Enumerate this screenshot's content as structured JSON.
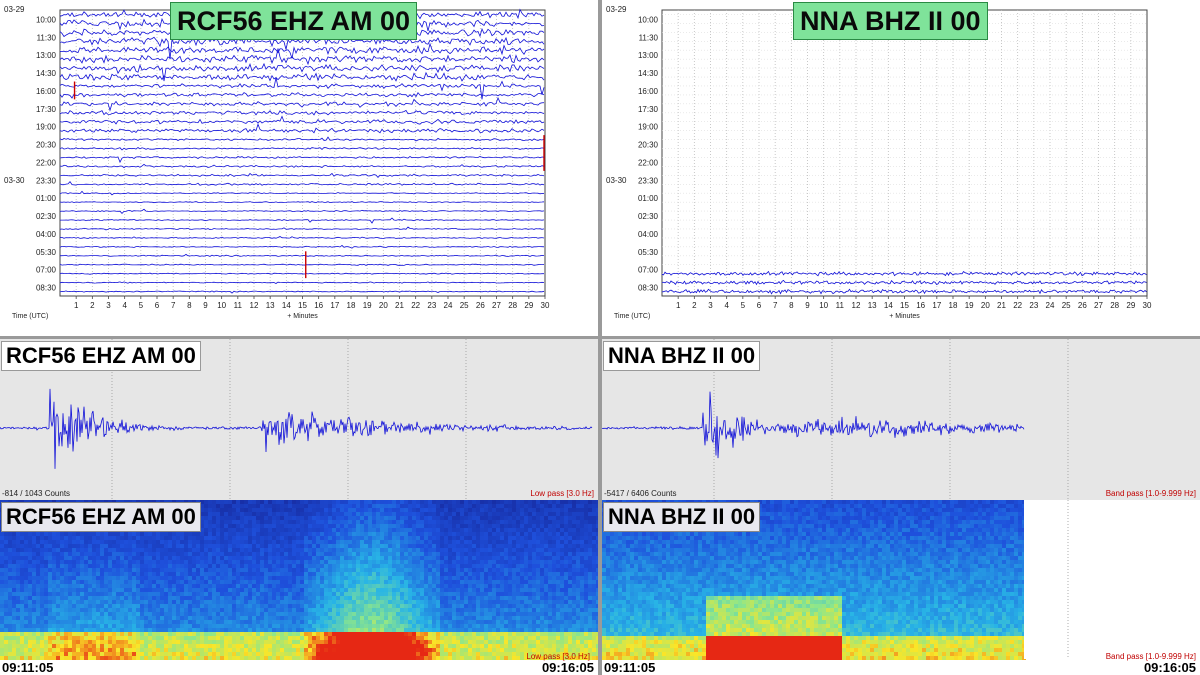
{
  "helicorder_left": {
    "title": "RCF56 EHZ AM 00",
    "date_labels": [
      "03-29",
      "03-30"
    ],
    "time_labels": [
      "10:00",
      "11:30",
      "13:00",
      "14:30",
      "16:00",
      "17:30",
      "19:00",
      "20:30",
      "22:00",
      "23:30",
      "01:00",
      "02:30",
      "04:00",
      "05:30",
      "07:00",
      "08:30"
    ],
    "x_ticks": [
      "1",
      "2",
      "3",
      "4",
      "5",
      "6",
      "7",
      "8",
      "9",
      "10",
      "11",
      "12",
      "13",
      "14",
      "15",
      "16",
      "17",
      "18",
      "19",
      "20",
      "21",
      "22",
      "23",
      "24",
      "25",
      "26",
      "27",
      "28",
      "29",
      "30"
    ],
    "x_axis_label": "+ Minutes",
    "y_axis_label": "Time (UTC)"
  },
  "helicorder_right": {
    "title": "NNA BHZ II 00",
    "date_labels": [
      "03-29",
      "03-30"
    ],
    "time_labels": [
      "10:00",
      "11:30",
      "13:00",
      "14:30",
      "16:00",
      "17:30",
      "19:00",
      "20:30",
      "22:00",
      "23:30",
      "01:00",
      "02:30",
      "04:00",
      "05:30",
      "07:00",
      "08:30"
    ],
    "x_ticks": [
      "1",
      "2",
      "3",
      "4",
      "5",
      "6",
      "7",
      "8",
      "9",
      "10",
      "11",
      "12",
      "13",
      "14",
      "15",
      "16",
      "17",
      "18",
      "19",
      "20",
      "21",
      "22",
      "23",
      "24",
      "25",
      "26",
      "27",
      "28",
      "29",
      "30"
    ],
    "x_axis_label": "+ Minutes",
    "y_axis_label": "Time (UTC)"
  },
  "trace_left": {
    "label": "RCF56 EHZ AM 00",
    "counts": "-814 / 1043 Counts",
    "filter": "Low pass [3.0 Hz]"
  },
  "trace_right": {
    "label": "NNA BHZ II 00",
    "counts": "-5417 / 6406 Counts",
    "filter": "Band pass [1.0-9.999 Hz]"
  },
  "spectrogram_left": {
    "label": "RCF56 EHZ AM 00",
    "filter": "Low pass [3.0 Hz]",
    "time_start": "09:11:05",
    "time_end": "09:16:05"
  },
  "spectrogram_right": {
    "label": "NNA BHZ II 00",
    "filter": "Band pass [1.0-9.999 Hz]",
    "time_start": "09:11:05",
    "time_end": "09:16:05"
  },
  "colors": {
    "trace_blue": "#1010d8",
    "event_red": "#cc0000",
    "badge_green": "#7fe39a",
    "spec_background": "#1a2a9a",
    "panel_gray": "#e6e6e6"
  }
}
